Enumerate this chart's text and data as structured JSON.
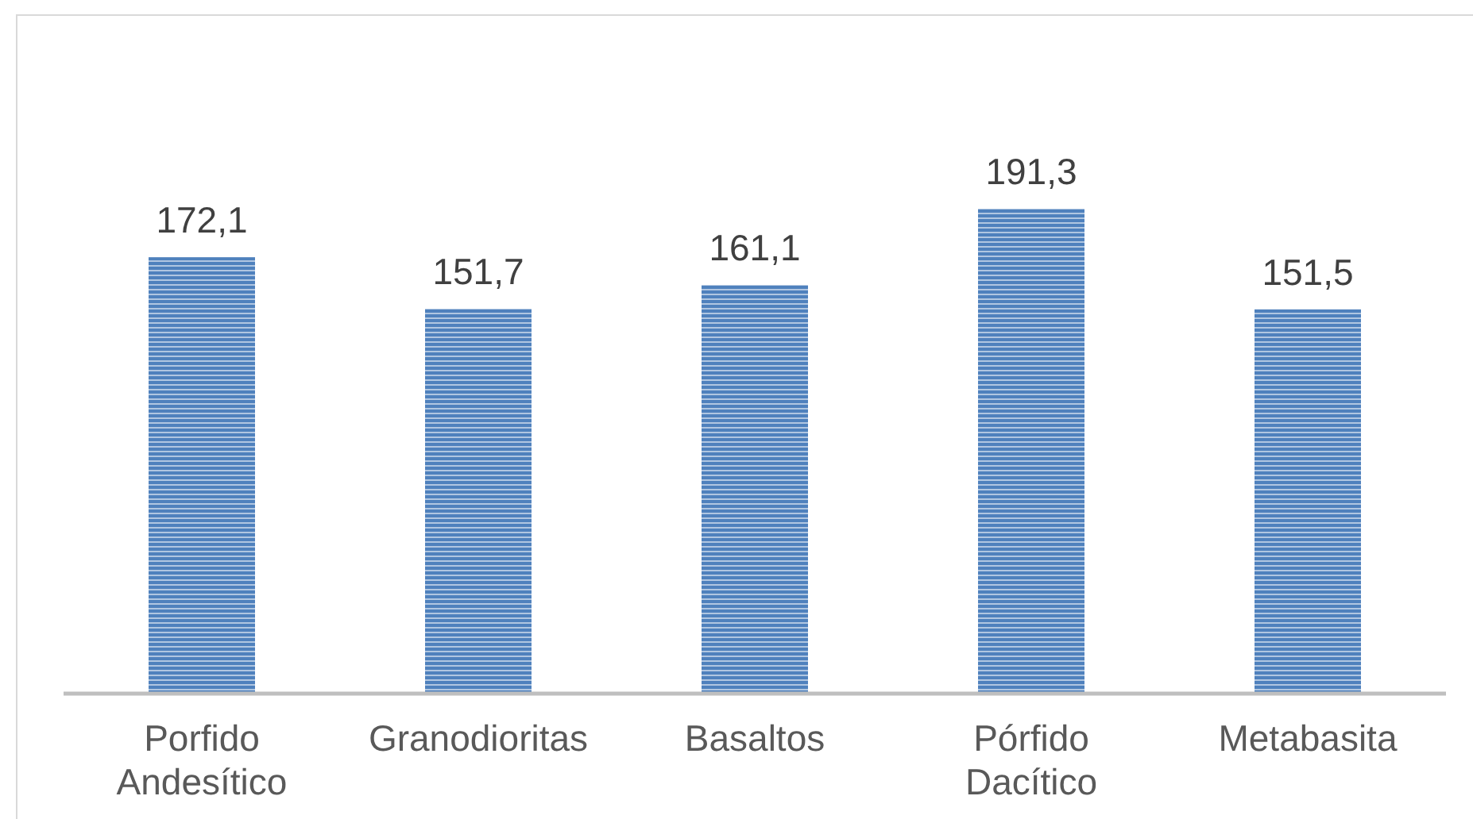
{
  "chart_data": {
    "type": "bar",
    "categories": [
      "Porfido Andesítico",
      "Granodioritas",
      "Basaltos",
      "Pórfido Dacítico",
      "Metabasita"
    ],
    "values": [
      172.1,
      151.7,
      161.1,
      191.3,
      151.5
    ],
    "value_labels": [
      "172,1",
      "151,7",
      "161,1",
      "191,3",
      "151,5"
    ],
    "color": "#4f81bd"
  }
}
